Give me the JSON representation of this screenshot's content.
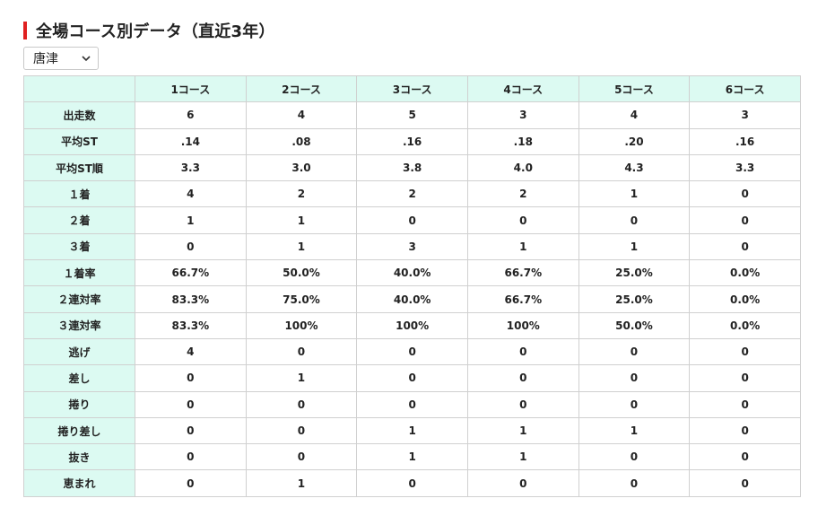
{
  "title": "全場コース別データ（直近3年）",
  "venue_select": {
    "selected": "唐津"
  },
  "table": {
    "corner": "",
    "columns": [
      "1コース",
      "2コース",
      "3コース",
      "4コース",
      "5コース",
      "6コース"
    ],
    "rows": [
      {
        "label": "出走数",
        "values": [
          "6",
          "4",
          "5",
          "3",
          "4",
          "3"
        ]
      },
      {
        "label": "平均ST",
        "values": [
          ".14",
          ".08",
          ".16",
          ".18",
          ".20",
          ".16"
        ]
      },
      {
        "label": "平均ST順",
        "values": [
          "3.3",
          "3.0",
          "3.8",
          "4.0",
          "4.3",
          "3.3"
        ]
      },
      {
        "label": "１着",
        "values": [
          "4",
          "2",
          "2",
          "2",
          "1",
          "0"
        ]
      },
      {
        "label": "２着",
        "values": [
          "1",
          "1",
          "0",
          "0",
          "0",
          "0"
        ]
      },
      {
        "label": "３着",
        "values": [
          "0",
          "1",
          "3",
          "1",
          "1",
          "0"
        ]
      },
      {
        "label": "１着率",
        "values": [
          "66.7%",
          "50.0%",
          "40.0%",
          "66.7%",
          "25.0%",
          "0.0%"
        ]
      },
      {
        "label": "２連対率",
        "values": [
          "83.3%",
          "75.0%",
          "40.0%",
          "66.7%",
          "25.0%",
          "0.0%"
        ]
      },
      {
        "label": "３連対率",
        "values": [
          "83.3%",
          "100%",
          "100%",
          "100%",
          "50.0%",
          "0.0%"
        ]
      },
      {
        "label": "逃げ",
        "values": [
          "4",
          "0",
          "0",
          "0",
          "0",
          "0"
        ]
      },
      {
        "label": "差し",
        "values": [
          "0",
          "1",
          "0",
          "0",
          "0",
          "0"
        ]
      },
      {
        "label": "捲り",
        "values": [
          "0",
          "0",
          "0",
          "0",
          "0",
          "0"
        ]
      },
      {
        "label": "捲り差し",
        "values": [
          "0",
          "0",
          "1",
          "1",
          "1",
          "0"
        ]
      },
      {
        "label": "抜き",
        "values": [
          "0",
          "0",
          "1",
          "1",
          "0",
          "0"
        ]
      },
      {
        "label": "恵まれ",
        "values": [
          "0",
          "1",
          "0",
          "0",
          "0",
          "0"
        ]
      }
    ]
  },
  "colors": {
    "title_accent": "#e02020",
    "header_bg": "#dcfaf2",
    "border": "#d0d0d0"
  }
}
